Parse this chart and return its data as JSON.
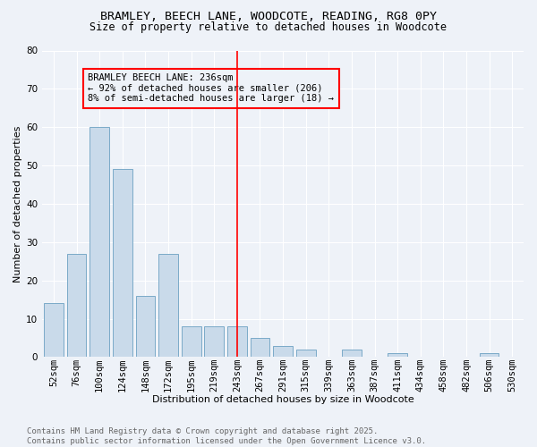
{
  "title_line1": "BRAMLEY, BEECH LANE, WOODCOTE, READING, RG8 0PY",
  "title_line2": "Size of property relative to detached houses in Woodcote",
  "xlabel": "Distribution of detached houses by size in Woodcote",
  "ylabel": "Number of detached properties",
  "bar_labels": [
    "52sqm",
    "76sqm",
    "100sqm",
    "124sqm",
    "148sqm",
    "172sqm",
    "195sqm",
    "219sqm",
    "243sqm",
    "267sqm",
    "291sqm",
    "315sqm",
    "339sqm",
    "363sqm",
    "387sqm",
    "411sqm",
    "434sqm",
    "458sqm",
    "482sqm",
    "506sqm",
    "530sqm"
  ],
  "bar_values": [
    14,
    27,
    60,
    49,
    16,
    27,
    8,
    8,
    8,
    5,
    3,
    2,
    0,
    2,
    0,
    1,
    0,
    0,
    0,
    1,
    0
  ],
  "bar_color": "#c9daea",
  "bar_edge_color": "#7aaac8",
  "vline_x": 8,
  "vline_color": "red",
  "annotation_text": "BRAMLEY BEECH LANE: 236sqm\n← 92% of detached houses are smaller (206)\n8% of semi-detached houses are larger (18) →",
  "annotation_box_edge": "red",
  "ylim": [
    0,
    80
  ],
  "yticks": [
    0,
    10,
    20,
    30,
    40,
    50,
    60,
    70,
    80
  ],
  "background_color": "#eef2f8",
  "grid_color": "#ffffff",
  "footer_text": "Contains HM Land Registry data © Crown copyright and database right 2025.\nContains public sector information licensed under the Open Government Licence v3.0.",
  "title_fontsize": 9.5,
  "subtitle_fontsize": 8.5,
  "axis_label_fontsize": 8,
  "tick_fontsize": 7.5,
  "annotation_fontsize": 7.5,
  "footer_fontsize": 6.5
}
